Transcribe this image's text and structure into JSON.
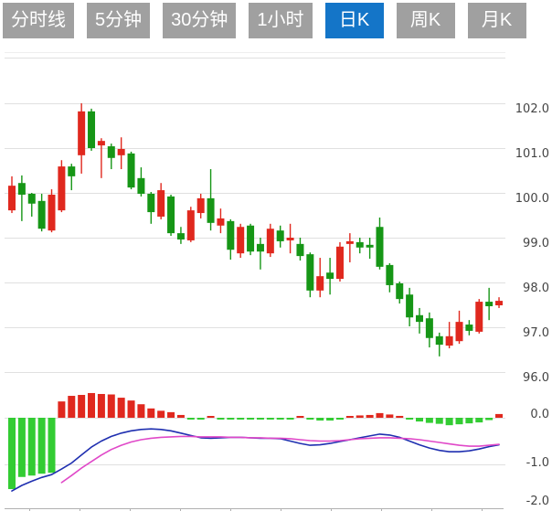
{
  "tabs": {
    "items": [
      {
        "label": "分时线",
        "active": false
      },
      {
        "label": "5分钟",
        "active": false
      },
      {
        "label": "30分钟",
        "active": false
      },
      {
        "label": "1小时",
        "active": false
      },
      {
        "label": "日K",
        "active": true
      },
      {
        "label": "周K",
        "active": false
      },
      {
        "label": "月K",
        "active": false
      }
    ]
  },
  "colors": {
    "up": "#e0281e",
    "down": "#169616",
    "macd_up": "#e0281e",
    "macd_down": "#33cc33",
    "dif_line": "#1f2fb0",
    "dea_line": "#e048c8",
    "tab_bg": "#a0a0a0",
    "tab_active_bg": "#1475c8",
    "tab_text": "#ffffff",
    "grid": "#e0e0e0",
    "grid_faint": "#eeeeee",
    "axis_text": "#444444",
    "axis_line": "#b0b0b0",
    "background": "#ffffff"
  },
  "chart_data": {
    "type": "candlestick+macd",
    "active_timeframe": "日K",
    "panels": [
      {
        "type": "candlestick",
        "name": "daily-k-price-panel",
        "y_axis": {
          "ticks": [
            102.0,
            101.0,
            100.0,
            99.0,
            98.0,
            97.0,
            96.0
          ],
          "range": [
            95.7,
            103.0
          ],
          "side": "right"
        },
        "x_axis": {
          "labels": [],
          "gridlines": false
        },
        "series": {
          "name": "日K",
          "ohlc_order": [
            "open",
            "high",
            "low",
            "close"
          ],
          "ohlc": [
            [
              99.61,
              100.37,
              99.55,
              100.16
            ],
            [
              100.22,
              100.39,
              99.37,
              99.96
            ],
            [
              99.98,
              100.0,
              99.47,
              99.76
            ],
            [
              99.82,
              99.98,
              99.14,
              99.2
            ],
            [
              99.16,
              100.08,
              99.12,
              99.96
            ],
            [
              99.61,
              100.73,
              99.57,
              100.59
            ],
            [
              100.59,
              100.65,
              100.06,
              100.37
            ],
            [
              100.84,
              102.0,
              100.43,
              101.82
            ],
            [
              101.82,
              101.88,
              100.94,
              101.0
            ],
            [
              101.06,
              101.22,
              100.33,
              101.16
            ],
            [
              101.04,
              101.1,
              100.53,
              100.78
            ],
            [
              100.84,
              101.24,
              100.53,
              100.98
            ],
            [
              100.88,
              100.92,
              100.08,
              100.12
            ],
            [
              100.33,
              100.57,
              99.92,
              99.98
            ],
            [
              99.98,
              100.02,
              99.31,
              99.57
            ],
            [
              99.47,
              100.22,
              99.41,
              100.06
            ],
            [
              99.92,
              99.96,
              99.04,
              99.1
            ],
            [
              99.1,
              99.24,
              98.86,
              98.96
            ],
            [
              98.94,
              99.69,
              98.9,
              99.61
            ],
            [
              99.55,
              99.98,
              99.43,
              99.88
            ],
            [
              99.88,
              100.53,
              99.16,
              99.33
            ],
            [
              99.27,
              99.65,
              99.1,
              99.43
            ],
            [
              99.37,
              99.41,
              98.51,
              98.73
            ],
            [
              98.65,
              99.31,
              98.55,
              99.24
            ],
            [
              99.27,
              99.31,
              98.61,
              98.69
            ],
            [
              98.86,
              99.0,
              98.29,
              98.69
            ],
            [
              98.65,
              99.31,
              98.57,
              99.2
            ],
            [
              99.16,
              99.27,
              98.78,
              98.92
            ],
            [
              98.94,
              99.31,
              98.65,
              99.0
            ],
            [
              98.86,
              99.0,
              98.49,
              98.59
            ],
            [
              98.63,
              98.67,
              97.67,
              97.82
            ],
            [
              97.82,
              98.55,
              97.67,
              98.14
            ],
            [
              98.22,
              98.55,
              97.73,
              98.08
            ],
            [
              98.08,
              98.9,
              98.02,
              98.8
            ],
            [
              98.86,
              99.1,
              98.45,
              98.92
            ],
            [
              98.9,
              99.0,
              98.65,
              98.78
            ],
            [
              98.84,
              99.0,
              98.53,
              98.78
            ],
            [
              99.24,
              99.45,
              98.29,
              98.35
            ],
            [
              98.39,
              98.43,
              97.78,
              97.94
            ],
            [
              97.98,
              98.02,
              97.53,
              97.63
            ],
            [
              97.73,
              97.88,
              97.02,
              97.22
            ],
            [
              97.27,
              97.43,
              96.86,
              97.12
            ],
            [
              97.2,
              97.33,
              96.55,
              96.76
            ],
            [
              96.8,
              96.88,
              96.35,
              96.61
            ],
            [
              96.59,
              97.12,
              96.53,
              96.8
            ],
            [
              96.69,
              97.37,
              96.63,
              97.12
            ],
            [
              97.06,
              97.16,
              96.82,
              96.92
            ],
            [
              96.9,
              97.63,
              96.86,
              97.57
            ],
            [
              97.57,
              97.88,
              97.16,
              97.47
            ],
            [
              97.49,
              97.67,
              97.43,
              97.59
            ]
          ]
        }
      },
      {
        "type": "macd",
        "name": "macd-indicator-panel",
        "y_axis": {
          "ticks": [
            0.0,
            -1.0,
            -2.0
          ],
          "range": [
            0.6,
            -2.0
          ],
          "side": "right"
        },
        "histogram": [
          -1.53,
          -1.27,
          -1.24,
          -1.2,
          -1.18,
          0.35,
          0.47,
          0.49,
          0.53,
          0.51,
          0.5,
          0.43,
          0.37,
          0.29,
          0.2,
          0.15,
          0.12,
          0.06,
          -0.03,
          -0.04,
          0.03,
          -0.01,
          -0.02,
          -0.03,
          -0.03,
          -0.03,
          -0.03,
          -0.03,
          -0.02,
          0.03,
          -0.04,
          -0.06,
          -0.06,
          -0.04,
          0.03,
          0.05,
          0.06,
          0.1,
          0.07,
          0.04,
          -0.03,
          -0.08,
          -0.11,
          -0.13,
          -0.16,
          -0.14,
          -0.12,
          -0.1,
          -0.05,
          0.08
        ],
        "dif": [
          -1.57,
          -1.45,
          -1.36,
          -1.28,
          -1.22,
          -1.1,
          -0.97,
          -0.8,
          -0.63,
          -0.5,
          -0.4,
          -0.33,
          -0.28,
          -0.25,
          -0.24,
          -0.25,
          -0.28,
          -0.33,
          -0.38,
          -0.43,
          -0.44,
          -0.43,
          -0.42,
          -0.42,
          -0.43,
          -0.44,
          -0.44,
          -0.45,
          -0.5,
          -0.55,
          -0.59,
          -0.58,
          -0.55,
          -0.51,
          -0.47,
          -0.43,
          -0.39,
          -0.35,
          -0.37,
          -0.42,
          -0.5,
          -0.58,
          -0.65,
          -0.7,
          -0.73,
          -0.73,
          -0.71,
          -0.67,
          -0.62,
          -0.58
        ],
        "dea": [
          null,
          null,
          null,
          null,
          null,
          -1.39,
          -1.24,
          -1.08,
          -0.94,
          -0.8,
          -0.68,
          -0.59,
          -0.52,
          -0.47,
          -0.44,
          -0.42,
          -0.41,
          -0.4,
          -0.4,
          -0.41,
          -0.41,
          -0.41,
          -0.42,
          -0.42,
          -0.43,
          -0.43,
          -0.44,
          -0.44,
          -0.45,
          -0.47,
          -0.49,
          -0.5,
          -0.5,
          -0.49,
          -0.47,
          -0.45,
          -0.44,
          -0.43,
          -0.43,
          -0.44,
          -0.45,
          -0.47,
          -0.5,
          -0.53,
          -0.56,
          -0.59,
          -0.61,
          -0.61,
          -0.59,
          -0.57
        ]
      }
    ]
  }
}
